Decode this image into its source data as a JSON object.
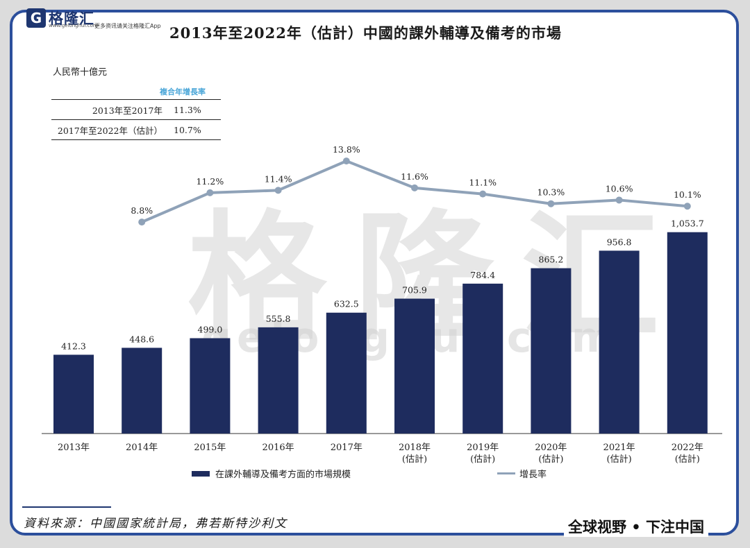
{
  "brand": {
    "logo_letter": "G",
    "logo_name": "格隆汇",
    "logo_url": "www.gelonghui.com",
    "tagline": "更多资讯请关注格隆汇App",
    "watermark_text": "格隆汇",
    "watermark_url": "gelonghui.com",
    "accent_color": "#1e3670"
  },
  "chart_data": {
    "type": "bar",
    "title": "2013年至2022年（估計）中國的課外輔導及備考的市場",
    "unit_label": "人民幣十億元",
    "categories": [
      "2013年",
      "2014年",
      "2015年",
      "2016年",
      "2017年",
      "2018年\n(估計)",
      "2019年\n(估計)",
      "2020年\n(估計)",
      "2021年\n(估計)",
      "2022年\n(估計)"
    ],
    "series": [
      {
        "name": "在課外輔導及備考方面的市場規模",
        "type": "bar",
        "color": "#1e2c5e",
        "values": [
          412.3,
          448.6,
          499.0,
          555.8,
          632.5,
          705.9,
          784.4,
          865.2,
          956.8,
          1053.7
        ],
        "value_labels": [
          "412.3",
          "448.6",
          "499.0",
          "555.8",
          "632.5",
          "705.9",
          "784.4",
          "865.2",
          "956.8",
          "1,053.7"
        ]
      },
      {
        "name": "增長率",
        "type": "line",
        "color": "#8fa2b8",
        "values": [
          null,
          8.8,
          11.2,
          11.4,
          13.8,
          11.6,
          11.1,
          10.3,
          10.6,
          10.1
        ],
        "value_labels": [
          "",
          "8.8%",
          "11.2%",
          "11.4%",
          "13.8%",
          "11.6%",
          "11.1%",
          "10.3%",
          "10.6%",
          "10.1%"
        ]
      }
    ],
    "ylim_bar": [
      0,
      1200
    ],
    "ylim_line": [
      0,
      30
    ],
    "grid": false,
    "legend_position": "bottom",
    "cagr_table": {
      "header": "複合年增長率",
      "rows": [
        {
          "period": "2013年至2017年",
          "value": "11.3%"
        },
        {
          "period": "2017年至2022年（估計）",
          "value": "10.7%"
        }
      ]
    }
  },
  "source": "資料來源：中國國家統計局，弗若斯特沙利文",
  "slogan": "全球视野 • 下注中国"
}
